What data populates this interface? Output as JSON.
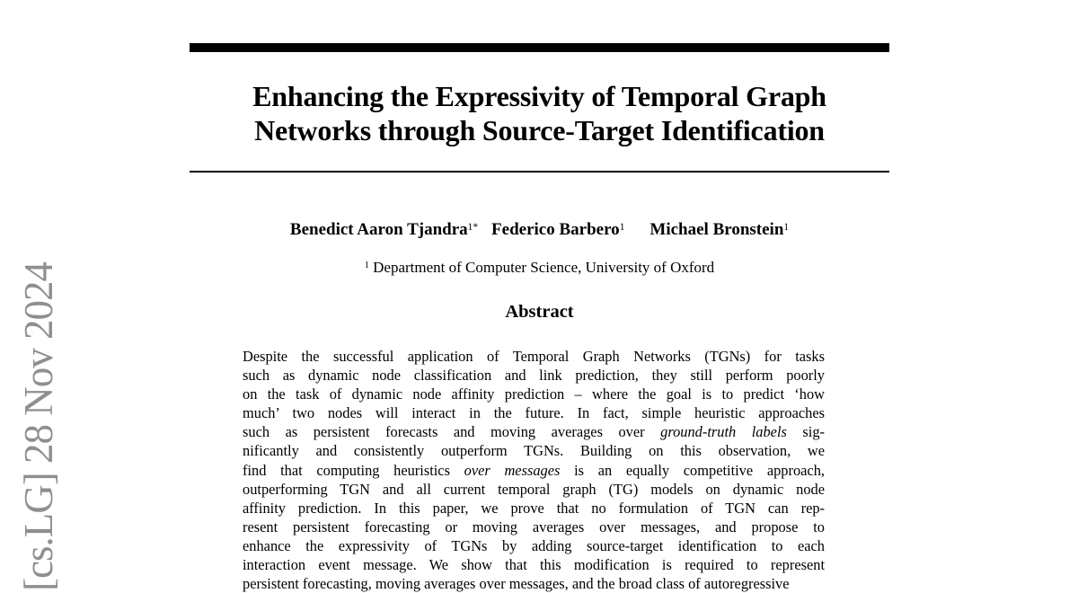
{
  "stamp": {
    "text": "[cs.LG]  28 Nov 2024",
    "color": "#8f8f8f"
  },
  "title": {
    "line1": "Enhancing the Expressivity of Temporal Graph",
    "line2": "Networks through Source-Target Identification"
  },
  "authors": [
    {
      "name": "Benedict Aaron Tjandra",
      "sup": "1*"
    },
    {
      "name": "Federico Barbero",
      "sup": "1"
    },
    {
      "name": "Michael Bronstein",
      "sup": "1"
    }
  ],
  "affiliation": {
    "sup": "1",
    "text": " Department of Computer Science, University of Oxford"
  },
  "abstract": {
    "heading": "Abstract",
    "lines": [
      [
        {
          "t": "Despite the successful application of Temporal Graph Networks (TGNs) for tasks"
        }
      ],
      [
        {
          "t": "such as dynamic node classification and link prediction, they still perform poorly"
        }
      ],
      [
        {
          "t": "on the task of dynamic node affinity prediction – where the goal is to predict ‘how"
        }
      ],
      [
        {
          "t": "much’ two nodes will interact in the future. In fact, simple heuristic approaches"
        }
      ],
      [
        {
          "t": "such as persistent forecasts and moving averages over "
        },
        {
          "t": "ground-truth labels",
          "i": true
        },
        {
          "t": " sig-"
        }
      ],
      [
        {
          "t": "nificantly and consistently outperform TGNs. Building on this observation, we"
        }
      ],
      [
        {
          "t": "find that computing heuristics "
        },
        {
          "t": "over messages",
          "i": true
        },
        {
          "t": " is an equally competitive approach,"
        }
      ],
      [
        {
          "t": "outperforming TGN and all current temporal graph (TG) models on dynamic node"
        }
      ],
      [
        {
          "t": "affinity prediction. In this paper, we prove that no formulation of TGN can rep-"
        }
      ],
      [
        {
          "t": "resent persistent forecasting or moving averages over messages, and propose to"
        }
      ],
      [
        {
          "t": "enhance the expressivity of TGNs by adding source-target identification to each"
        }
      ],
      [
        {
          "t": "interaction event message. We show that this modification is required to represent"
        }
      ],
      [
        {
          "t": "persistent forecasting, moving averages over messages, and the broad class of autoregressive"
        }
      ]
    ]
  }
}
